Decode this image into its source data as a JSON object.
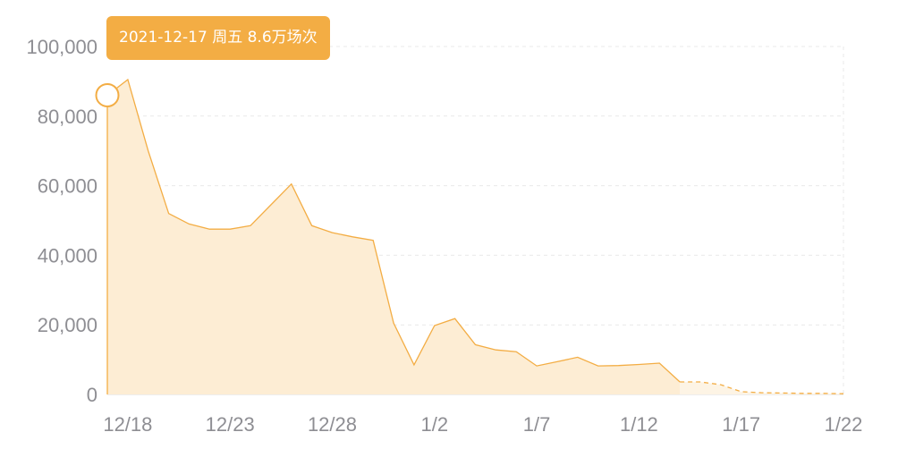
{
  "tooltip": {
    "text": "2021-12-17 周五 8.6万场次"
  },
  "colors": {
    "line": "#f3ad44",
    "fill": "#fdedd4",
    "grid": "#e9e9e9",
    "text": "#8e8e93",
    "tooltip": "#f3ad44"
  },
  "chart_data": {
    "type": "area",
    "title": "",
    "xlabel": "",
    "ylabel": "",
    "ylim": [
      0,
      100000
    ],
    "yticks": [
      "100,000",
      "80,000",
      "60,000",
      "40,000",
      "20,000",
      "0"
    ],
    "xticks": [
      "12/18",
      "12/23",
      "12/28",
      "1/2",
      "1/7",
      "1/12",
      "1/17",
      "1/22"
    ],
    "grid": true,
    "x": [
      "2021-12-17",
      "2021-12-18",
      "2021-12-19",
      "2021-12-20",
      "2021-12-21",
      "2021-12-22",
      "2021-12-23",
      "2021-12-24",
      "2021-12-25",
      "2021-12-26",
      "2021-12-27",
      "2021-12-28",
      "2021-12-29",
      "2021-12-30",
      "2021-12-31",
      "2022-01-01",
      "2022-01-02",
      "2022-01-03",
      "2022-01-04",
      "2022-01-05",
      "2022-01-06",
      "2022-01-07",
      "2022-01-08",
      "2022-01-09",
      "2022-01-10",
      "2022-01-11",
      "2022-01-12",
      "2022-01-13",
      "2022-01-14",
      "2022-01-15",
      "2022-01-16",
      "2022-01-17",
      "2022-01-18",
      "2022-01-19",
      "2022-01-20",
      "2022-01-21",
      "2022-01-22"
    ],
    "values": [
      86000,
      90500,
      70000,
      52000,
      49000,
      47500,
      47500,
      48500,
      54500,
      60500,
      48500,
      46500,
      45300,
      44300,
      20500,
      8500,
      19800,
      21800,
      14300,
      12800,
      12300,
      8200,
      9400,
      10700,
      8200,
      8300,
      8600,
      9000,
      3600,
      3600,
      2800,
      800,
      500,
      400,
      300,
      300,
      200
    ],
    "forecast_from": "2022-01-14",
    "highlight": "2021-12-17"
  }
}
